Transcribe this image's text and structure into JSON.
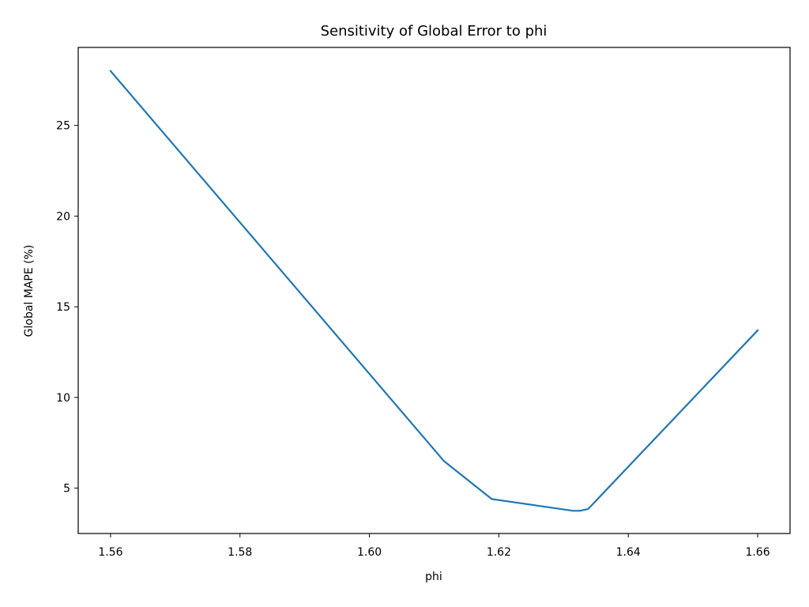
{
  "chart_data": {
    "type": "line",
    "title": "Sensitivity of Global Error to phi",
    "xlabel": "phi",
    "ylabel": "Global MAPE (%)",
    "xlim": [
      1.555,
      1.665
    ],
    "ylim": [
      2.5,
      29.3
    ],
    "xticks": [
      1.56,
      1.58,
      1.6,
      1.62,
      1.64,
      1.66
    ],
    "xtick_labels": [
      "1.56",
      "1.58",
      "1.60",
      "1.62",
      "1.64",
      "1.66"
    ],
    "yticks": [
      5,
      10,
      15,
      20,
      25
    ],
    "ytick_labels": [
      "5",
      "10",
      "15",
      "20",
      "25"
    ],
    "grid": false,
    "series": [
      {
        "color": "#1f77b4",
        "x": [
          1.56,
          1.6115,
          1.6189,
          1.6315,
          1.6325,
          1.6338,
          1.66
        ],
        "y": [
          28.0,
          6.5,
          4.4,
          3.75,
          3.75,
          3.85,
          13.7
        ]
      }
    ]
  }
}
